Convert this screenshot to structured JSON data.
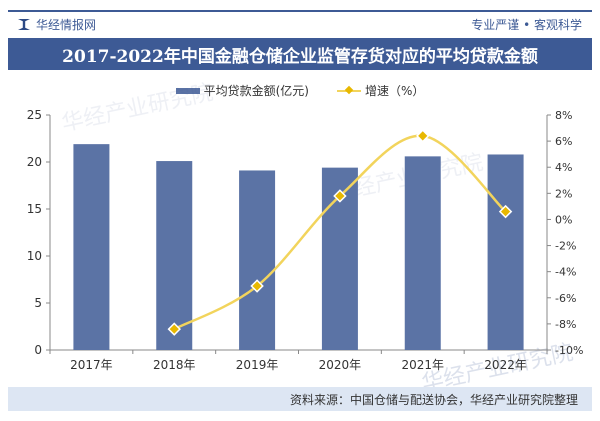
{
  "header": {
    "brand": "华经情报网",
    "slogan": "专业严谨 • 客观科学",
    "title": "2017-2022年中国金融仓储企业监管存货对应的平均贷款金额"
  },
  "footer": {
    "source": "资料来源：中国仓储与配送协会，华经产业研究院整理"
  },
  "watermark": "华经产业研究院",
  "chart_data": {
    "type": "bar",
    "title": "2017-2022年中国金融仓储企业监管存货对应的平均贷款金额",
    "categories": [
      "2017年",
      "2018年",
      "2019年",
      "2020年",
      "2021年",
      "2022年"
    ],
    "series": [
      {
        "name": "平均贷款金额(亿元)",
        "type": "bar",
        "axis": "left",
        "color": "#5b73a5",
        "values": [
          21.9,
          20.1,
          19.1,
          19.4,
          20.6,
          20.8
        ]
      },
      {
        "name": "增速（%）",
        "type": "line",
        "axis": "right",
        "color": "#f2d45c",
        "values": [
          null,
          -8.4,
          -5.1,
          1.8,
          6.4,
          0.6
        ]
      }
    ],
    "left_axis": {
      "ylim": [
        0,
        25
      ],
      "ticks": [
        "0",
        "5",
        "10",
        "15",
        "20",
        "25"
      ]
    },
    "right_axis": {
      "ylim": [
        -10,
        8
      ],
      "ticks": [
        "-10%",
        "-8%",
        "-6%",
        "-4%",
        "-2%",
        "0%",
        "2%",
        "4%",
        "6%",
        "8%"
      ]
    },
    "grid": false,
    "legend": "top"
  }
}
